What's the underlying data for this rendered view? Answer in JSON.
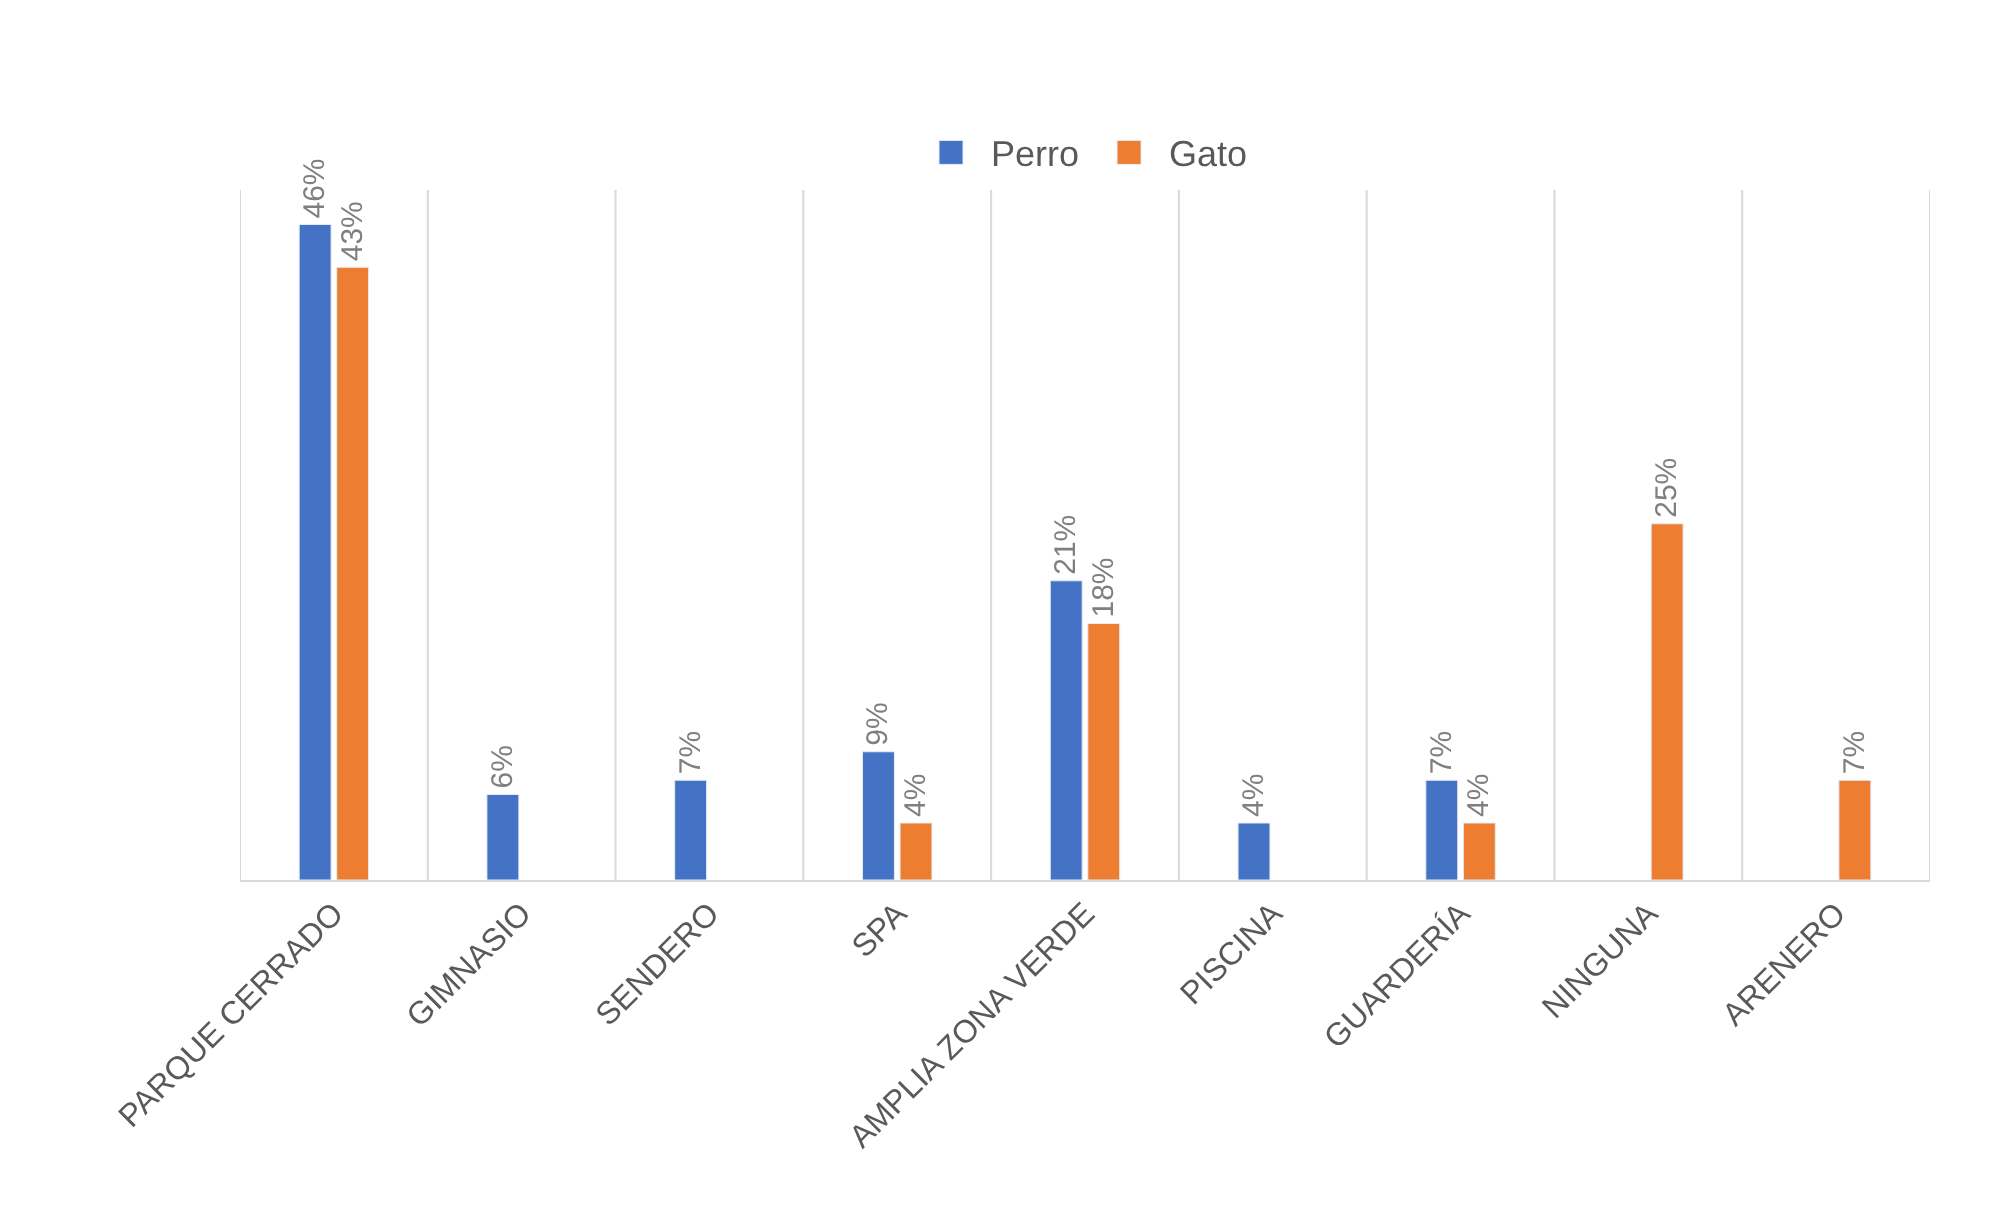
{
  "chart_data": {
    "type": "bar",
    "categories": [
      "PARQUE CERRADO",
      "GIMNASIO",
      "SENDERO",
      "SPA",
      "AMPLIA ZONA VERDE",
      "PISCINA",
      "GUARDERÍA",
      "NINGUNA",
      "ARENERO"
    ],
    "series": [
      {
        "name": "Perro",
        "color": "#4472c4",
        "values": [
          46,
          6,
          7,
          9,
          21,
          4,
          7,
          null,
          null
        ],
        "value_labels": [
          "46%",
          "6%",
          "7%",
          "9%",
          "21%",
          "4%",
          "7%",
          null,
          null
        ]
      },
      {
        "name": "Gato",
        "color": "#ed7d31",
        "values": [
          43,
          null,
          null,
          4,
          18,
          null,
          4,
          25,
          7
        ],
        "value_labels": [
          "43%",
          null,
          null,
          "4%",
          "18%",
          null,
          "4%",
          "25%",
          "7%"
        ]
      }
    ],
    "grid": "x",
    "legend": "top",
    "tick_labels": "x"
  }
}
